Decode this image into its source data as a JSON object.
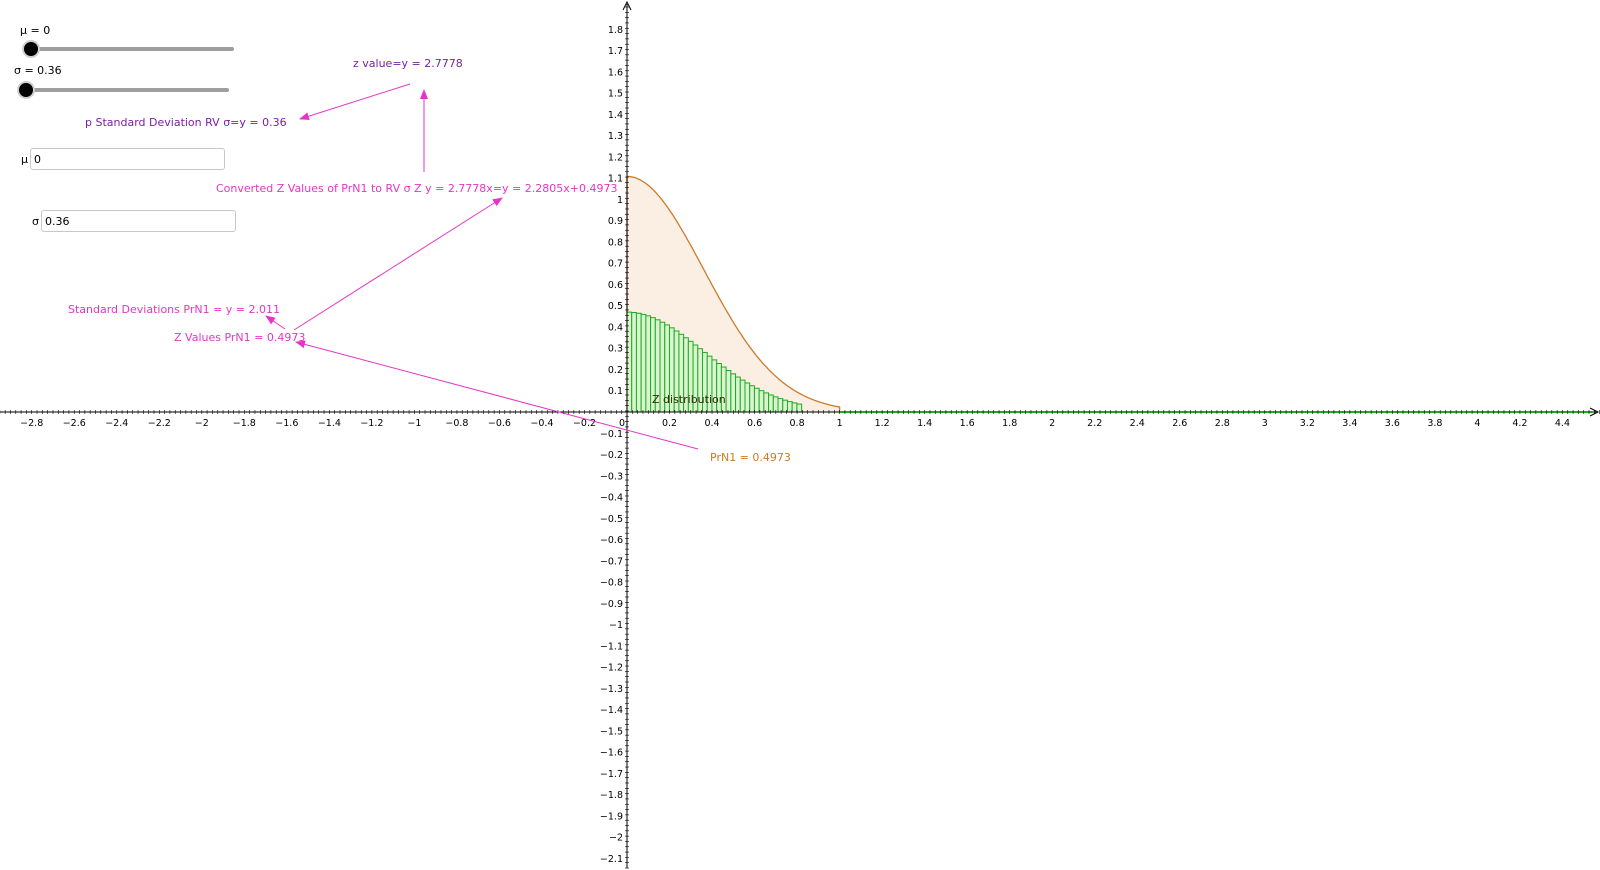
{
  "controls": {
    "mu_slider_label": "μ = 0",
    "sigma_slider_label": "σ = 0.36",
    "mu_input_label": "μ",
    "mu_input_value": "0",
    "sigma_input_label": "σ",
    "sigma_input_value": "0.36",
    "mu_slider_value": 0,
    "sigma_slider_value": 0.36
  },
  "annotations": {
    "z_value": "z value=y = 2.7778",
    "p_std_dev": "p Standard Deviation RV σ=y = 0.36",
    "converted": "Converted Z Values of PrN1 to RV σ Z  y = 2.7778x=y = 2.2805x+0.4973",
    "std_devs": "Standard Deviations PrN1 = y = 2.011",
    "z_values": "Z Values PrN1 = 0.4973",
    "prn1": "PrN1 = 0.4973",
    "z_distribution": "Z distribution"
  },
  "colors": {
    "purple": "#7b1fa2",
    "magenta": "#e535c8",
    "orange": "#cc7a2a",
    "orange_fill": "#fbeee2",
    "green": "#22aa22",
    "green_fill": "#d8f5d0",
    "axis": "#000000"
  },
  "chart_data": {
    "type": "area",
    "x_ticks": [
      "−2.8",
      "−2.6",
      "−2.4",
      "−2.2",
      "−2",
      "−1.8",
      "−1.6",
      "−1.4",
      "−1.2",
      "−1",
      "−0.8",
      "−0.6",
      "−0.4",
      "−0.2",
      "0",
      "0.2",
      "0.4",
      "0.6",
      "0.8",
      "1",
      "1.2",
      "1.4",
      "1.6",
      "1.8",
      "2",
      "2.2",
      "2.4",
      "2.6",
      "2.8",
      "3",
      "3.2",
      "3.4",
      "3.6",
      "3.8",
      "4",
      "4.2",
      "4.4"
    ],
    "y_ticks": [
      "1.8",
      "1.7",
      "1.6",
      "1.5",
      "1.4",
      "1.3",
      "1.2",
      "1.1",
      "1",
      "0.9",
      "0.8",
      "0.7",
      "0.6",
      "0.5",
      "0.4",
      "0.3",
      "0.2",
      "0.1",
      "−0.1",
      "−0.2",
      "−0.3",
      "−0.4",
      "−0.5",
      "−0.6",
      "−0.7",
      "−0.8",
      "−0.9",
      "−1",
      "−1.1",
      "−1.2",
      "−1.3",
      "−1.4",
      "−1.5",
      "−1.6",
      "−1.7",
      "−1.8",
      "−1.9",
      "−2",
      "−2.1"
    ],
    "xlim": [
      -2.95,
      4.58
    ],
    "ylim": [
      -2.17,
      1.92
    ],
    "normal_curve": {
      "mu": 0,
      "sigma": 0.36,
      "x_range": [
        0,
        1
      ]
    },
    "bars": {
      "x_start": 0,
      "x_end": 0.8,
      "width": 0.0222,
      "peak": 0.47,
      "sigma": 0.36
    }
  }
}
